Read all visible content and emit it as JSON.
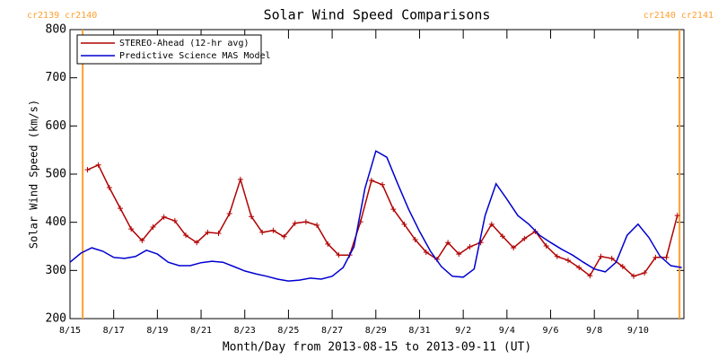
{
  "chart_data": {
    "type": "line",
    "title": "Solar Wind Speed Comparisons",
    "xlabel": "Month/Day from 2013-08-15 to 2013-09-11 (UT)",
    "ylabel": "Solar Wind Speed (km/s)",
    "xlim": [
      0,
      28.1
    ],
    "ylim": [
      200,
      800
    ],
    "xticks": [
      {
        "value": 0,
        "label": "8/15"
      },
      {
        "value": 2,
        "label": "8/17"
      },
      {
        "value": 4,
        "label": "8/19"
      },
      {
        "value": 6,
        "label": "8/21"
      },
      {
        "value": 8,
        "label": "8/23"
      },
      {
        "value": 10,
        "label": "8/25"
      },
      {
        "value": 12,
        "label": "8/27"
      },
      {
        "value": 14,
        "label": "8/29"
      },
      {
        "value": 16,
        "label": "8/31"
      },
      {
        "value": 18,
        "label": "9/2"
      },
      {
        "value": 20,
        "label": "9/4"
      },
      {
        "value": 22,
        "label": "9/6"
      },
      {
        "value": 24,
        "label": "9/8"
      },
      {
        "value": 26,
        "label": "9/10"
      }
    ],
    "yticks": [
      200,
      300,
      400,
      500,
      600,
      700,
      800
    ],
    "legend": "upper left",
    "annotations": [
      {
        "text": "cr2139 cr2140",
        "x": 0.58,
        "color": "#ff9f2e",
        "align": "left"
      },
      {
        "text": "cr2140 cr2141",
        "x": 27.9,
        "color": "#ff9f2e",
        "align": "right"
      }
    ],
    "series": [
      {
        "name": "STEREO-Ahead (12-hr avg)",
        "color": "#b00000",
        "marker": "+",
        "x": [
          0.8,
          1.3,
          1.8,
          2.3,
          2.8,
          3.3,
          3.8,
          4.3,
          4.8,
          5.3,
          5.8,
          6.3,
          6.8,
          7.3,
          7.8,
          8.3,
          8.8,
          9.3,
          9.8,
          10.3,
          10.8,
          11.3,
          11.8,
          12.3,
          12.8,
          13.3,
          13.8,
          14.3,
          14.8,
          15.3,
          15.8,
          16.3,
          16.8,
          17.3,
          17.8,
          18.3,
          18.8,
          19.3,
          19.8,
          20.3,
          20.8,
          21.3,
          21.8,
          22.3,
          22.8,
          23.3,
          23.8,
          24.3,
          24.8,
          25.3,
          25.8,
          26.3,
          26.8,
          27.3,
          27.8
        ],
        "values": [
          509,
          519,
          472,
          429,
          386,
          362,
          390,
          411,
          403,
          373,
          358,
          379,
          377,
          418,
          489,
          412,
          379,
          383,
          370,
          398,
          401,
          394,
          355,
          332,
          332,
          401,
          487,
          478,
          427,
          396,
          364,
          338,
          323,
          358,
          334,
          349,
          358,
          396,
          371,
          347,
          366,
          381,
          351,
          329,
          321,
          306,
          289,
          329,
          325,
          308,
          288,
          295,
          327,
          327,
          414
        ]
      },
      {
        "name": "Predictive Science MAS Model",
        "color": "#0000d0",
        "x": [
          0,
          0.5,
          1,
          1.5,
          2,
          2.5,
          3,
          3.5,
          4,
          4.5,
          5,
          5.5,
          6,
          6.5,
          7,
          7.5,
          8,
          8.5,
          9,
          9.5,
          10,
          10.5,
          11,
          11.5,
          12,
          12.5,
          13,
          13.5,
          14,
          14.5,
          15,
          15.5,
          16,
          16.5,
          17,
          17.5,
          18,
          18.5,
          19,
          19.5,
          20,
          20.5,
          21,
          21.5,
          22,
          22.5,
          23,
          23.5,
          24,
          24.5,
          25,
          25.5,
          26,
          26.5,
          27,
          27.5,
          28
        ],
        "values": [
          317,
          336,
          347,
          340,
          327,
          325,
          329,
          342,
          334,
          317,
          310,
          310,
          316,
          319,
          317,
          308,
          299,
          293,
          288,
          282,
          278,
          280,
          284,
          282,
          288,
          306,
          349,
          470,
          548,
          535,
          480,
          427,
          381,
          340,
          308,
          288,
          286,
          303,
          414,
          480,
          448,
          414,
          396,
          373,
          358,
          344,
          332,
          317,
          303,
          297,
          317,
          373,
          396,
          368,
          330,
          310,
          306
        ]
      }
    ]
  }
}
